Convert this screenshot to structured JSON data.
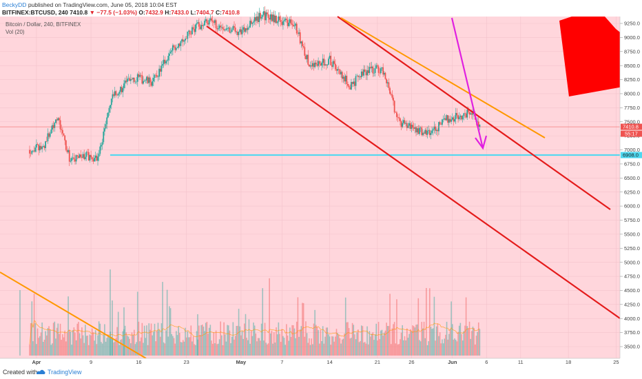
{
  "header": {
    "author": "BeckyDD",
    "published": "published on TradingView.com, June 05, 2018 10:04 EST",
    "symbol": "BITFINEX:BTCUSD, 240",
    "last": "7410.8",
    "change": "−77.5 (−1.03%)",
    "o_label": "O:",
    "o_val": "7432.9",
    "h_label": "H:",
    "h_val": "7433.0",
    "l_label": "L:",
    "l_val": "7404.7",
    "c_label": "C:",
    "c_val": "7410.8"
  },
  "legend": {
    "title": "Bitcoin / Dollar, 240, BITFINEX",
    "volume": "Vol (20)"
  },
  "footer": {
    "created": "Created with",
    "brand": "TradingView"
  },
  "colors": {
    "background": "#ffd6dc",
    "candle_up": "#26a69a",
    "candle_down": "#ef5350",
    "trend_red": "#e41b1b",
    "trend_orange": "#ff9800",
    "arrow_magenta": "#e020e0",
    "support_cyan": "#4dd8f0",
    "shape_red": "#ff0000"
  },
  "chart_data": {
    "type": "candlestick",
    "instrument": "BITFINEX:BTCUSD",
    "interval": "240",
    "y_axis": {
      "min": 3400,
      "max": 9400,
      "ticks": [
        3500,
        3750,
        4000,
        4250,
        4500,
        4750,
        5000,
        5250,
        5500,
        5750,
        6000,
        6250,
        6500,
        6750,
        7000,
        7250,
        7500,
        7750,
        8000,
        8250,
        8500,
        8750,
        9000,
        9250
      ]
    },
    "x_axis": {
      "ticks": [
        "Apr",
        "9",
        "16",
        "23",
        "May",
        "7",
        "14",
        "21",
        "26",
        "Jun",
        "6",
        "11",
        "18",
        "25"
      ]
    },
    "price_labels": {
      "last_price": "7410.8",
      "countdown": "55:17",
      "support_level": "6908.0"
    },
    "approx_close_path": [
      {
        "date": "Mar 31",
        "price": 7000
      },
      {
        "date": "Apr 2",
        "price": 7050
      },
      {
        "date": "Apr 4",
        "price": 7600
      },
      {
        "date": "Apr 6",
        "price": 6800
      },
      {
        "date": "Apr 8",
        "price": 6900
      },
      {
        "date": "Apr 10",
        "price": 6850
      },
      {
        "date": "Apr 12",
        "price": 7900
      },
      {
        "date": "Apr 15",
        "price": 8300
      },
      {
        "date": "Apr 18",
        "price": 8200
      },
      {
        "date": "Apr 21",
        "price": 8800
      },
      {
        "date": "Apr 24",
        "price": 9150
      },
      {
        "date": "Apr 26",
        "price": 9300
      },
      {
        "date": "Apr 28",
        "price": 9200
      },
      {
        "date": "May 1",
        "price": 9100
      },
      {
        "date": "May 4",
        "price": 9400
      },
      {
        "date": "May 7",
        "price": 9300
      },
      {
        "date": "May 9",
        "price": 9200
      },
      {
        "date": "May 11",
        "price": 8500
      },
      {
        "date": "May 14",
        "price": 8600
      },
      {
        "date": "May 17",
        "price": 8150
      },
      {
        "date": "May 20",
        "price": 8450
      },
      {
        "date": "May 22",
        "price": 8400
      },
      {
        "date": "May 24",
        "price": 7500
      },
      {
        "date": "May 27",
        "price": 7350
      },
      {
        "date": "May 29",
        "price": 7300
      },
      {
        "date": "May 31",
        "price": 7550
      },
      {
        "date": "Jun 2",
        "price": 7600
      },
      {
        "date": "Jun 4",
        "price": 7700
      },
      {
        "date": "Jun 5",
        "price": 7410.8
      }
    ]
  }
}
